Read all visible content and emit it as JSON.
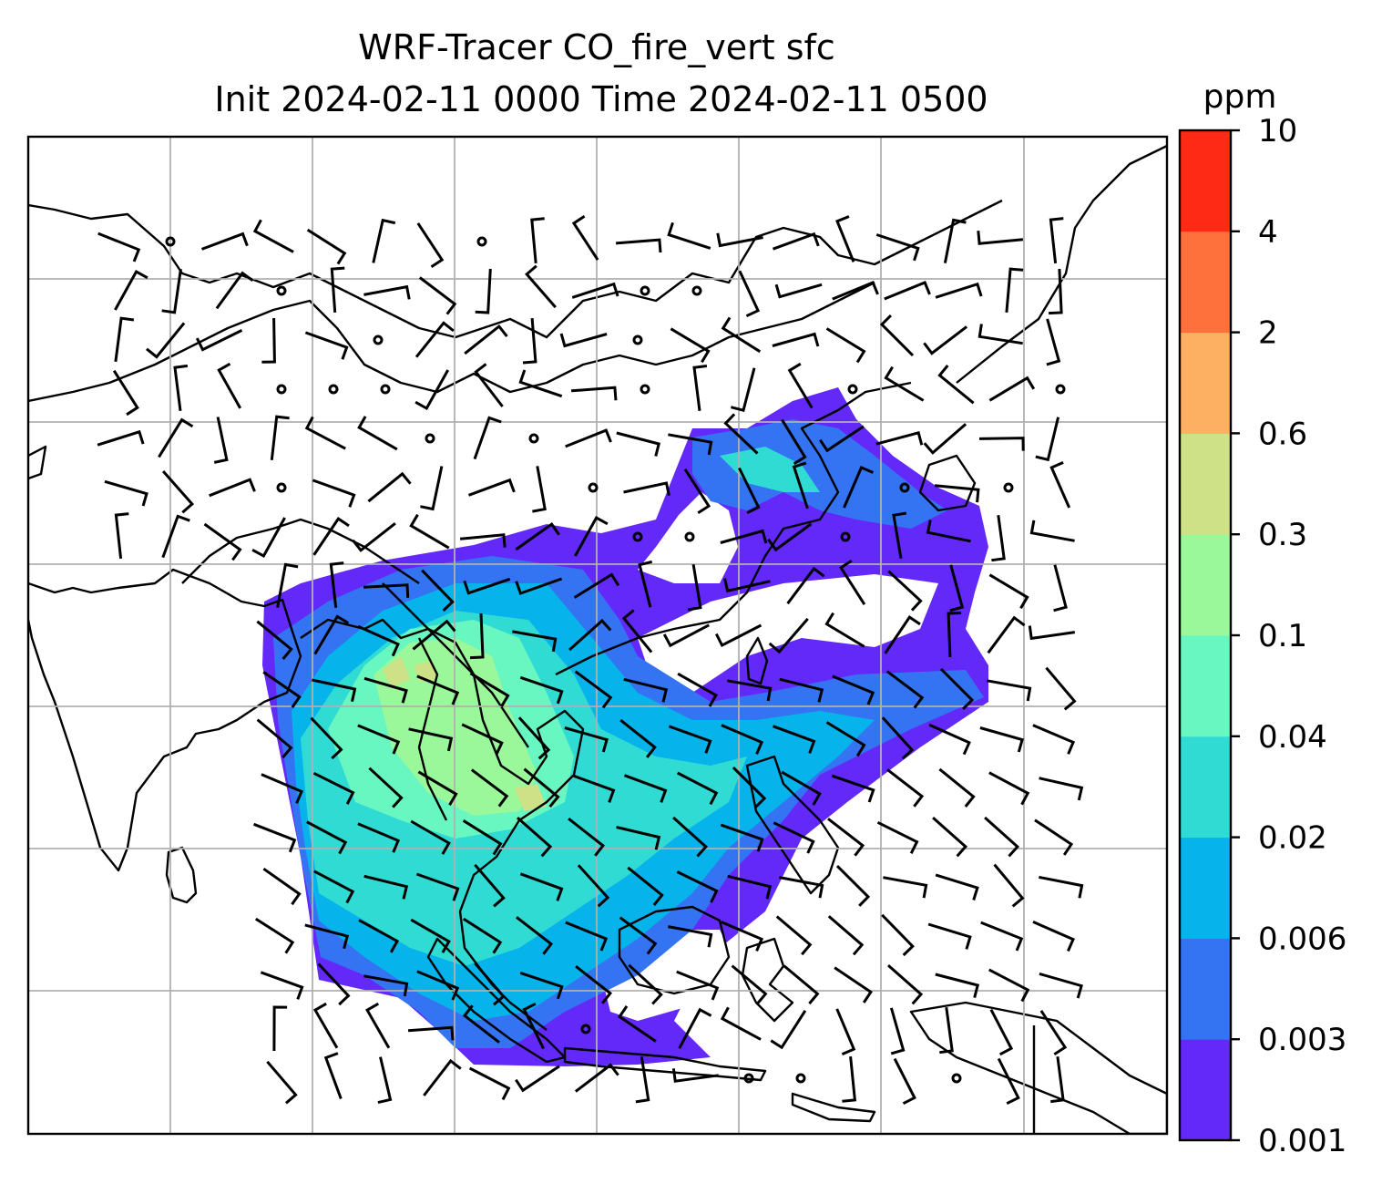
{
  "title": {
    "line1": "WRF-Tracer CO_fire_vert sfc",
    "line2": "Init 2024-02-11 0000 Time 2024-02-11 0500"
  },
  "colorbar": {
    "units": "ppm",
    "levels": [
      "0.001",
      "0.003",
      "0.006",
      "0.02",
      "0.04",
      "0.1",
      "0.3",
      "0.6",
      "2",
      "4",
      "10"
    ],
    "colors": [
      "#6329f9",
      "#3474f3",
      "#06b3ea",
      "#2fdbd3",
      "#68f7c1",
      "#9af79a",
      "#cfe187",
      "#fdb062",
      "#ff713c",
      "#ff2a15"
    ]
  },
  "map": {
    "field": "CO_fire_vert",
    "level": "sfc",
    "gridlines": true,
    "barbs": true,
    "coastlines": true
  }
}
